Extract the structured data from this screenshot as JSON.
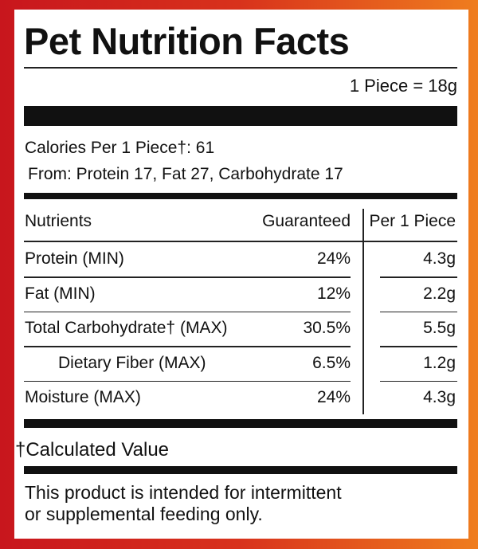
{
  "title": "Pet Nutrition Facts",
  "serving": "1 Piece = 18g",
  "calories": "Calories Per 1 Piece†: 61",
  "calories_from": "From: Protein 17, Fat 27, Carbohydrate 17",
  "table": {
    "header": [
      "Nutrients",
      "Guaranteed",
      "Per 1 Piece"
    ],
    "rows": [
      [
        "Protein (MIN)",
        "24%",
        "4.3g"
      ],
      [
        "Fat (MIN)",
        "12%",
        "2.2g"
      ],
      [
        "Total Carbohydrate† (MAX)",
        "30.5%",
        "5.5g"
      ],
      [
        "Dietary Fiber (MAX)",
        "6.5%",
        "1.2g"
      ],
      [
        "Moisture (MAX)",
        "24%",
        "4.3g"
      ]
    ]
  },
  "footnote": "†Calculated Value",
  "notice": [
    "This product is intended for intermittent",
    "or supplemental feeding only."
  ]
}
